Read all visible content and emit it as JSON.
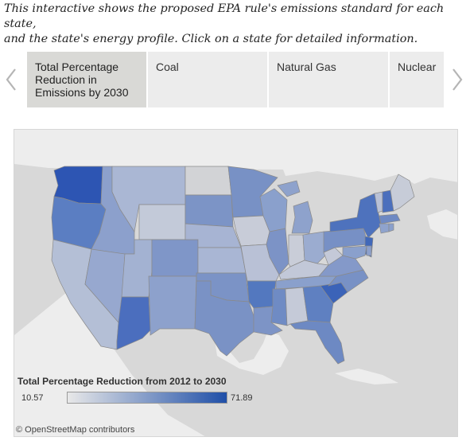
{
  "intro": {
    "line1": "This interactive shows the proposed EPA rule's emissions standard for each state,",
    "line2": "and the state's energy profile. Click on a state for detailed information."
  },
  "tabs": [
    {
      "label": "Total Percentage Reduction in Emissions by 2030",
      "active": true
    },
    {
      "label": "Coal",
      "active": false
    },
    {
      "label": "Natural Gas",
      "active": false
    },
    {
      "label": "Nuclear",
      "active": false
    }
  ],
  "legend": {
    "title": "Total Percentage Reduction from 2012 to 2030",
    "min": "10.57",
    "max": "71.89",
    "color_min": "#e8e8e8",
    "color_max": "#1f4fa8"
  },
  "attribution": "© OpenStreetMap contributors",
  "colors": {
    "map_background": "#d8d8d8",
    "land": "#ededed",
    "state_border": "#8a8a8a",
    "active_tab": "#d9d9d6",
    "inactive_tab": "#ececec"
  },
  "icons": {
    "left_arrow": "chevron-left-icon",
    "right_arrow": "chevron-right-icon",
    "copyright": "copyright-icon"
  }
}
